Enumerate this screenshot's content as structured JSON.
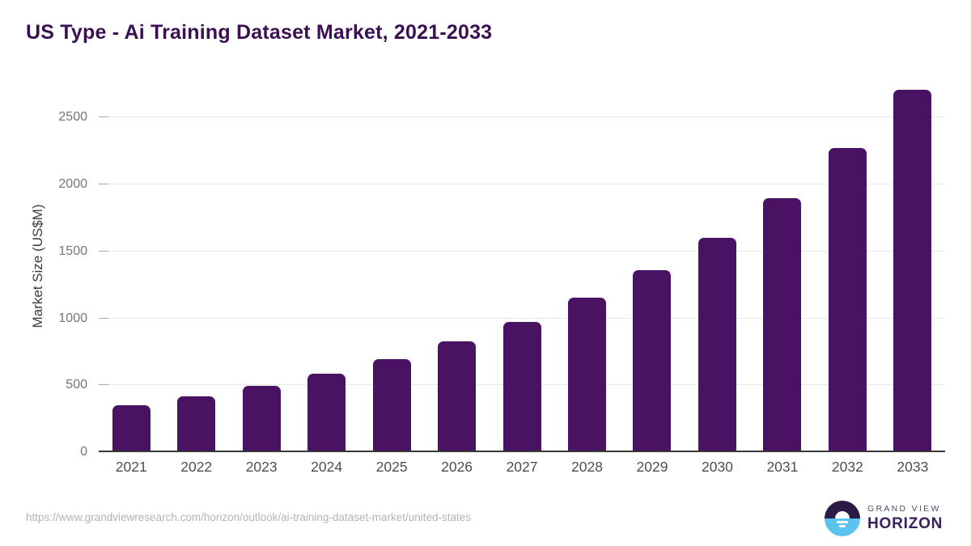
{
  "header": {
    "title": "US Type - Ai Training Dataset Market, 2021-2033"
  },
  "chart_data": {
    "type": "bar",
    "title": "US Type - Ai Training Dataset Market, 2021-2033",
    "categories": [
      "2021",
      "2022",
      "2023",
      "2024",
      "2025",
      "2026",
      "2027",
      "2028",
      "2029",
      "2030",
      "2031",
      "2032",
      "2033"
    ],
    "values": [
      350,
      420,
      495,
      585,
      695,
      830,
      975,
      1155,
      1360,
      1600,
      1900,
      2270,
      2710
    ],
    "xlabel": "",
    "ylabel": "Market Size (US$M)",
    "ylim": [
      0,
      2780
    ],
    "yticks": [
      0,
      500,
      1000,
      1500,
      2000,
      2500
    ],
    "grid": true,
    "legend": "none",
    "bar_color": "#4a1263"
  },
  "footer": {
    "source_url": "https://www.grandviewresearch.com/horizon/outlook/ai-training-dataset-market/united-states",
    "logo": {
      "line1": "GRAND VIEW",
      "line2": "HORIZON"
    }
  },
  "colors": {
    "title": "#3a1052",
    "bar": "#4a1263",
    "logo_dark": "#2c1a47",
    "logo_blue": "#5cc3ef",
    "axis_line": "#383838",
    "gridline": "#e9e9e9"
  }
}
